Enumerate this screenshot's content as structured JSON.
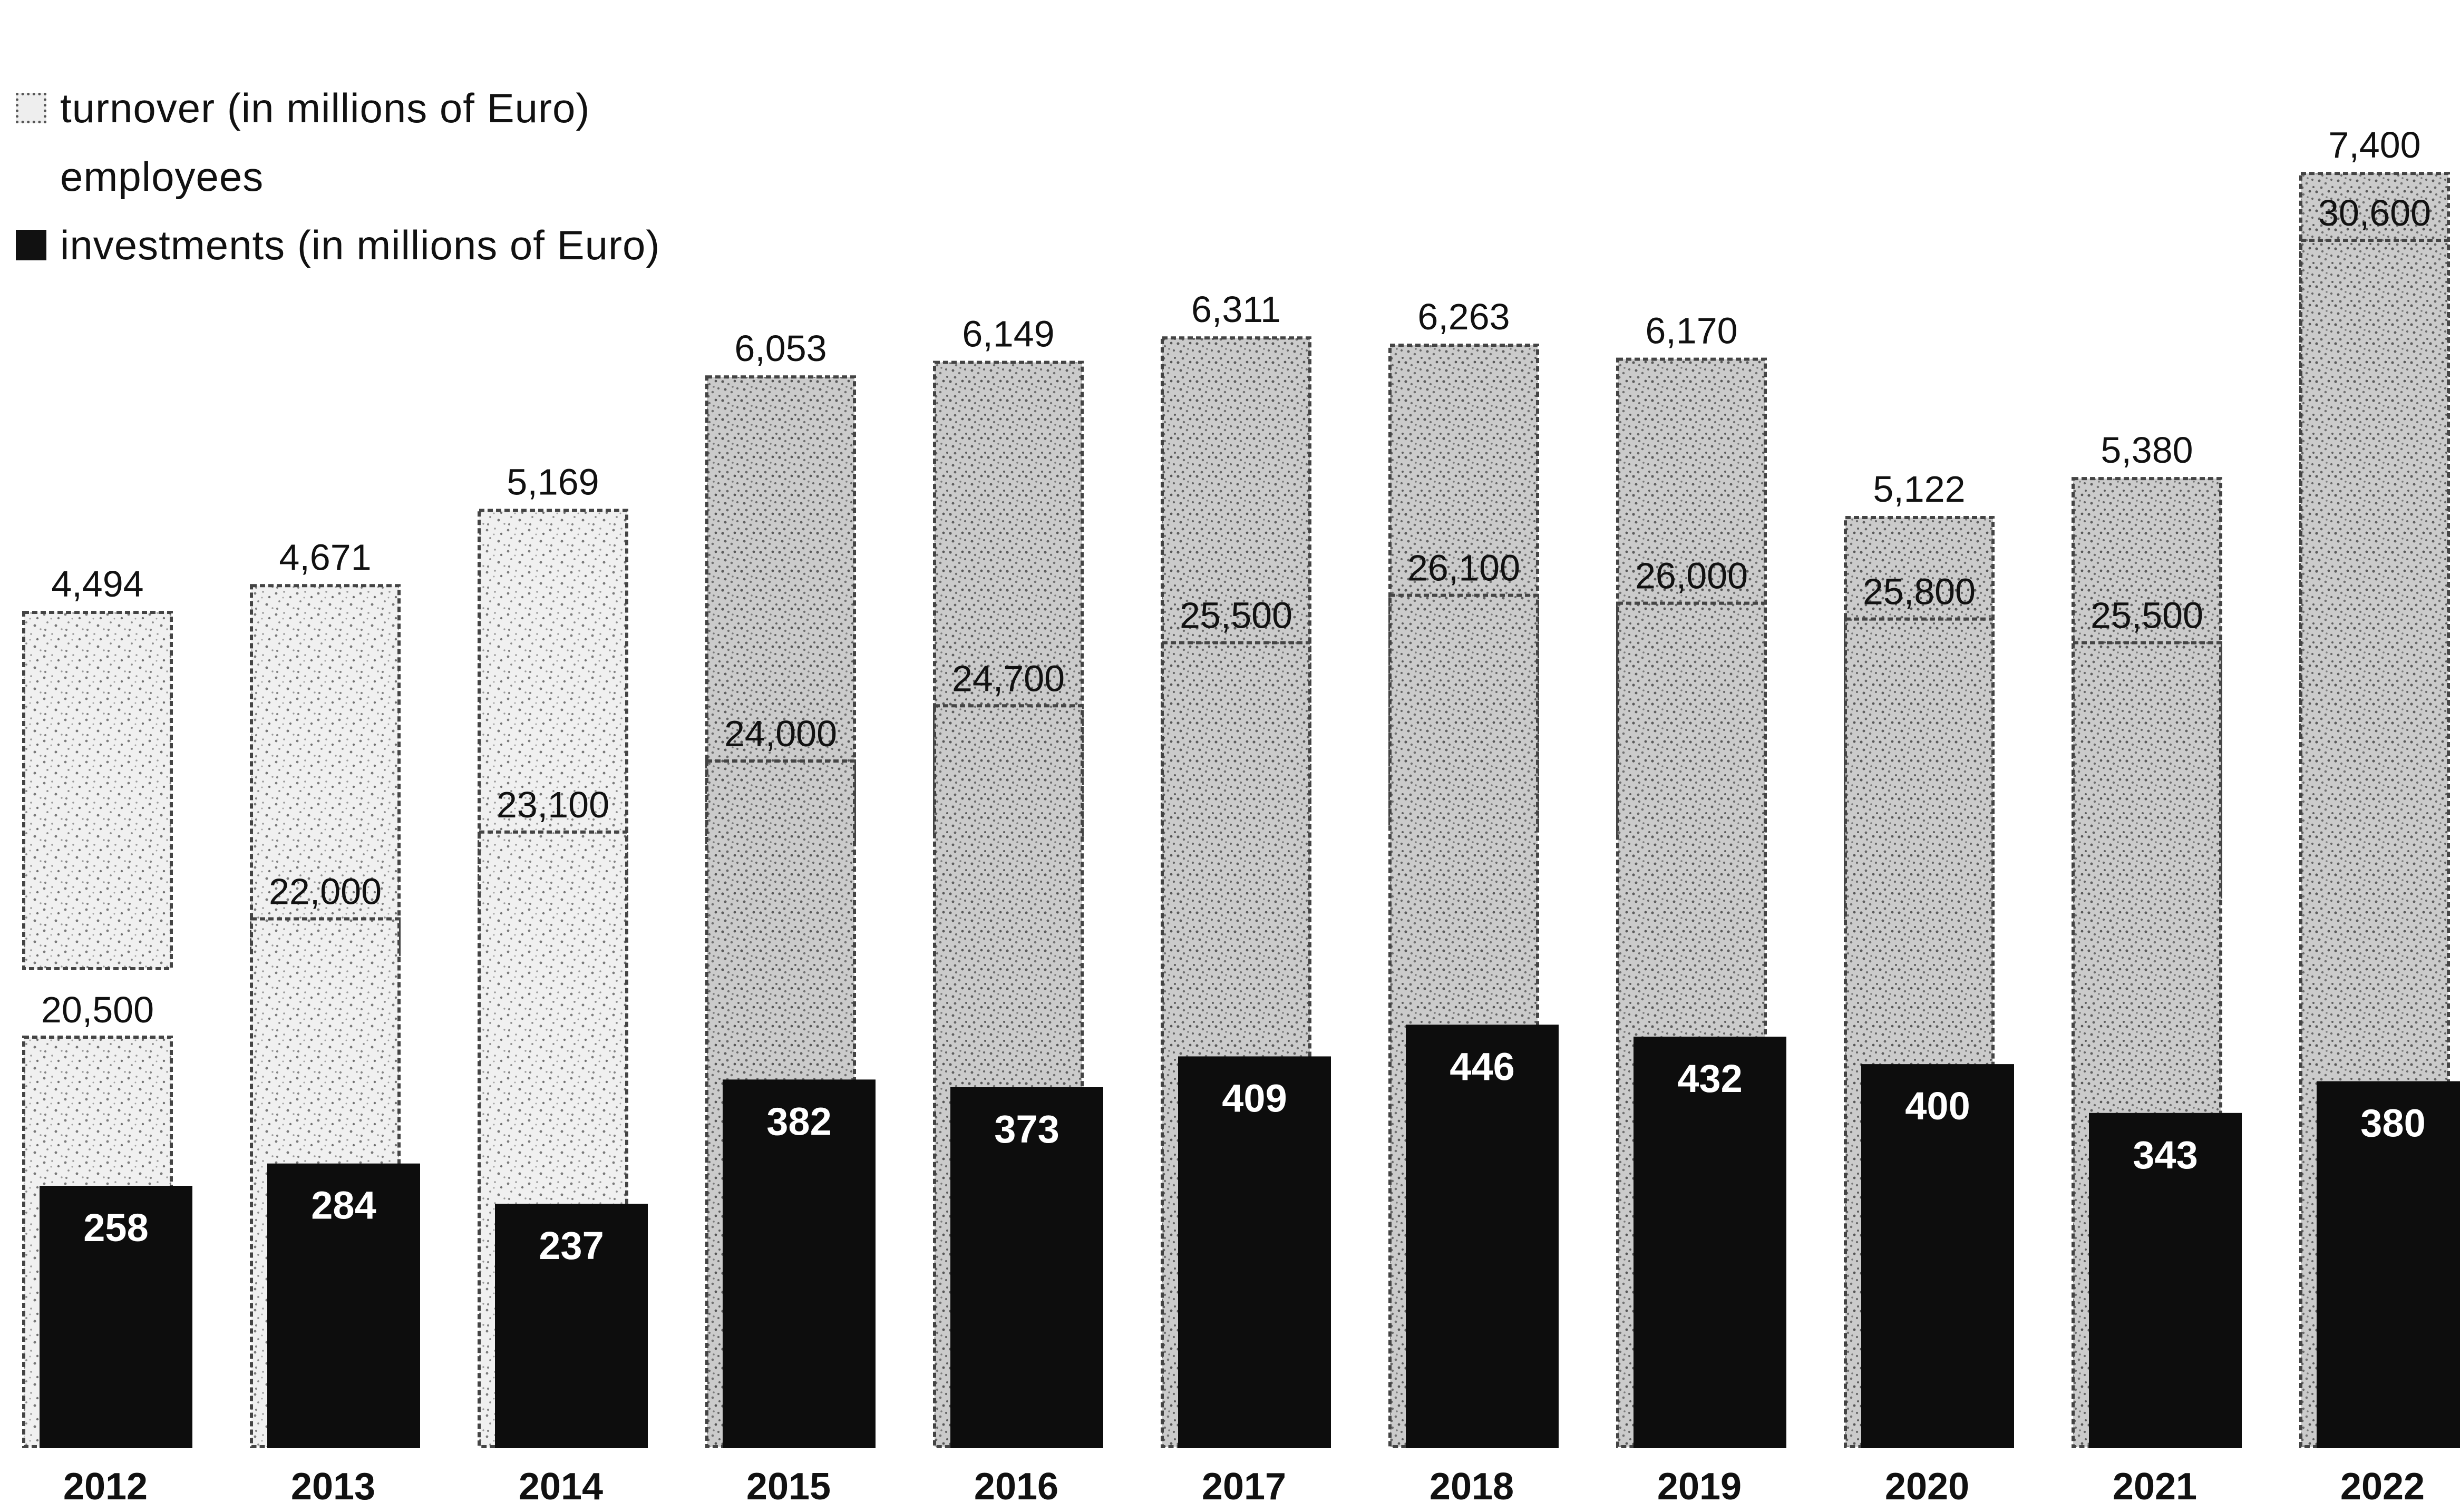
{
  "chart_data": {
    "type": "bar",
    "title": "",
    "xlabel": "",
    "ylabel": "",
    "legend_position": "top-left",
    "grid": false,
    "categories": [
      "2012",
      "2013",
      "2014",
      "2015",
      "2016",
      "2017",
      "2018",
      "2019",
      "2020",
      "2021",
      "2022"
    ],
    "series": [
      {
        "name": "turnover (in millions of Euro)",
        "values": [
          4494,
          4671,
          5169,
          6053,
          6149,
          6311,
          6263,
          6170,
          5122,
          5380,
          7400
        ],
        "labels": [
          "4,494",
          "4,671",
          "5,169",
          "6,053",
          "6,149",
          "6,311",
          "6,263",
          "6,170",
          "5,122",
          "5,380",
          "7,400"
        ],
        "color": "#c8c8c8"
      },
      {
        "name": "employees",
        "values": [
          20500,
          22000,
          23100,
          24000,
          24700,
          25500,
          26100,
          26000,
          25800,
          25500,
          30600
        ],
        "labels": [
          "20,500",
          "22,000",
          "23,100",
          "24,000",
          "24,700",
          "25,500",
          "26,100",
          "26,000",
          "25,800",
          "25,500",
          "30,600"
        ],
        "color": "#d8d8d8"
      },
      {
        "name": "investments (in millions of Euro)",
        "values": [
          258,
          284,
          237,
          382,
          373,
          409,
          446,
          432,
          400,
          343,
          380
        ],
        "labels": [
          "258",
          "284",
          "237",
          "382",
          "373",
          "409",
          "446",
          "432",
          "400",
          "343",
          "380"
        ],
        "color": "#111111"
      }
    ]
  }
}
